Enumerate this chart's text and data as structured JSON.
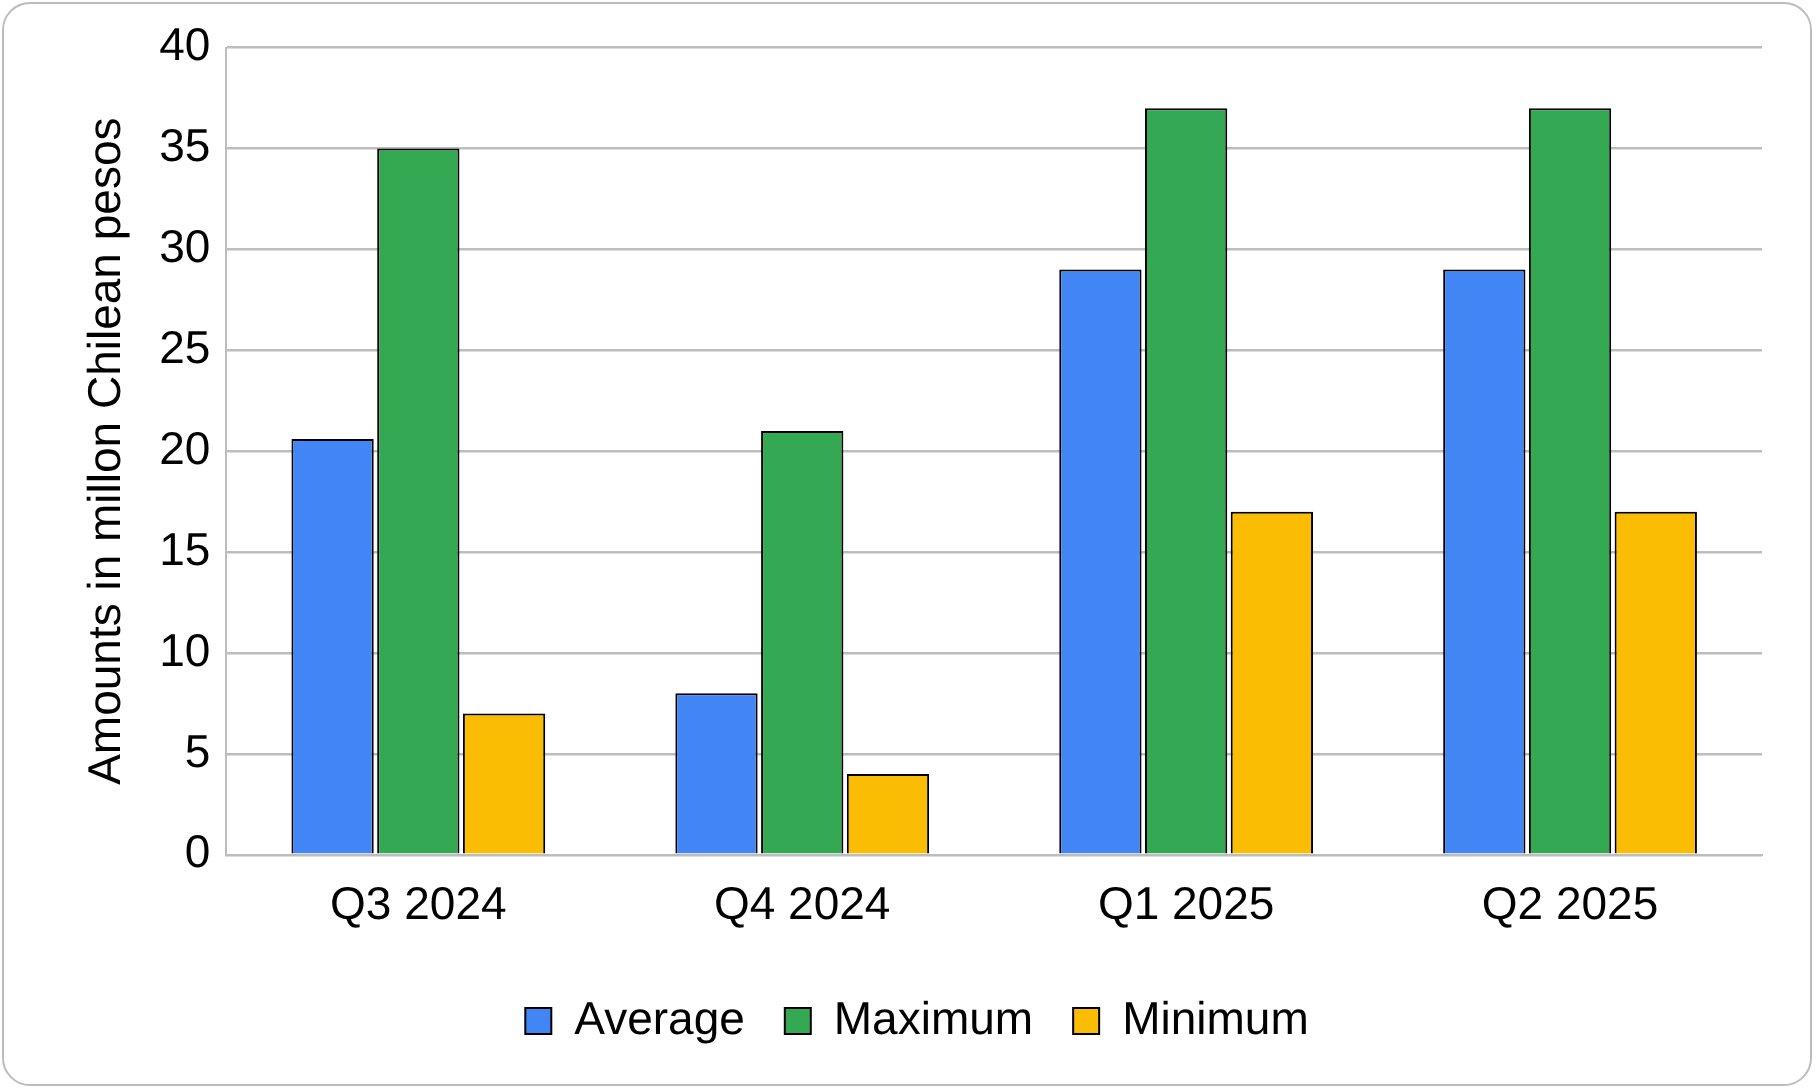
{
  "chart_data": {
    "type": "bar",
    "ylabel": "Amounts in millon Chilean pesos",
    "categories": [
      "Q3 2024",
      "Q4 2024",
      "Q1 2025",
      "Q2 2025"
    ],
    "series": [
      {
        "name": "Average",
        "color": "#4285f4",
        "values": [
          20.6,
          8,
          29,
          29
        ]
      },
      {
        "name": "Maximum",
        "color": "#34a853",
        "values": [
          35,
          21,
          37,
          37
        ]
      },
      {
        "name": "Minimum",
        "color": "#fbbc04",
        "values": [
          7,
          4,
          17,
          17
        ]
      }
    ],
    "ylim": [
      0,
      40
    ],
    "yticks": [
      0,
      5,
      10,
      15,
      20,
      25,
      30,
      35,
      40
    ],
    "grid": "y",
    "legend": "bottom"
  }
}
